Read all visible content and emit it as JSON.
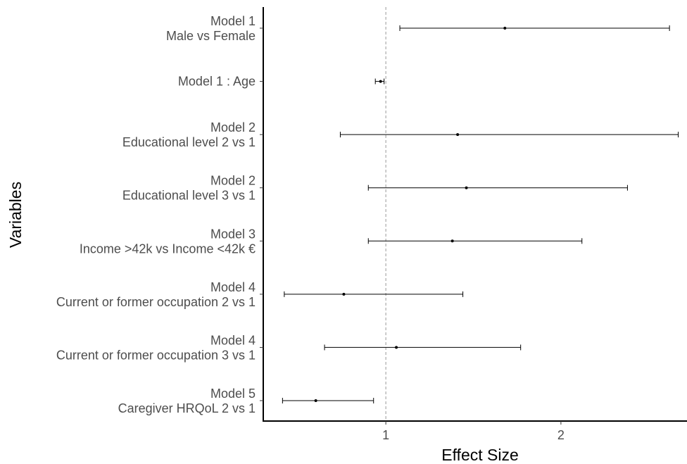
{
  "chart_data": {
    "type": "forest",
    "title": "",
    "xlabel": "Effect Size",
    "ylabel": "Variables",
    "xlim": [
      0.3,
      2.72
    ],
    "xticks": [
      1,
      2
    ],
    "reference_line": 1,
    "grid": false,
    "rows": [
      {
        "label": [
          "Model 1",
          "Male vs Female"
        ],
        "estimate": 1.68,
        "lower": 1.08,
        "upper": 2.62
      },
      {
        "label": [
          "Model 1 : Age"
        ],
        "estimate": 0.97,
        "lower": 0.94,
        "upper": 0.99
      },
      {
        "label": [
          "Model 2",
          "Educational level 2 vs 1"
        ],
        "estimate": 1.41,
        "lower": 0.74,
        "upper": 2.67
      },
      {
        "label": [
          "Model 2",
          "Educational level 3 vs 1"
        ],
        "estimate": 1.46,
        "lower": 0.9,
        "upper": 2.38
      },
      {
        "label": [
          "Model 3",
          "Income >42k vs Income <42k €"
        ],
        "estimate": 1.38,
        "lower": 0.9,
        "upper": 2.12
      },
      {
        "label": [
          "Model 4",
          "Current or former occupation 2 vs 1"
        ],
        "estimate": 0.76,
        "lower": 0.42,
        "upper": 1.44
      },
      {
        "label": [
          "Model 4",
          "Current or former occupation 3 vs 1"
        ],
        "estimate": 1.06,
        "lower": 0.65,
        "upper": 1.77
      },
      {
        "label": [
          "Model 5",
          "Caregiver HRQoL 2 vs 1"
        ],
        "estimate": 0.6,
        "lower": 0.41,
        "upper": 0.93
      }
    ],
    "colors": {
      "marks": "#000000",
      "reference_line": "#999999",
      "tick_labels": "#4d4d4d"
    }
  }
}
